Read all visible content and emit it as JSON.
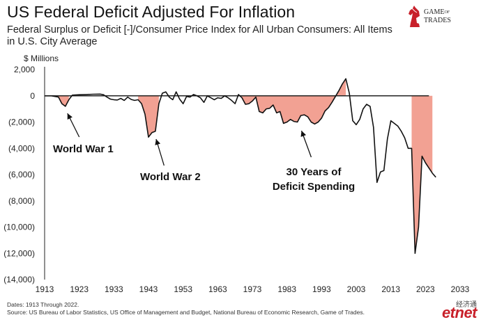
{
  "header": {
    "title": "US Federal Deficit Adjusted For Inflation",
    "subtitle": "Federal Surplus or Deficit [-]/Consumer Price Index for All Urban Consumers: All Items in U.S. City Average"
  },
  "logo": {
    "line1": "GAME",
    "line1_small": "OF",
    "line2": "TRADES"
  },
  "footnote": {
    "dates": "Dates: 1913 Through 2022.",
    "source": "Source: US Bureau of Labor Statistics, US Office of Management and Budget, National Bureau of Economic Research, Game of Trades."
  },
  "watermark": {
    "cn": "经济通",
    "en": "etnet"
  },
  "colors": {
    "fill": "#f2a193",
    "line": "#111111",
    "zero": "#222222"
  },
  "chart_data": {
    "type": "area",
    "unit_label": "$ Millions",
    "xlim": [
      1913,
      2033
    ],
    "ylim": [
      -14000,
      2000
    ],
    "xticks": [
      1913,
      1923,
      1933,
      1943,
      1953,
      1963,
      1973,
      1983,
      1993,
      2003,
      2013,
      2023,
      2033
    ],
    "yticks": [
      2000,
      0,
      -2000,
      -4000,
      -6000,
      -8000,
      -10000,
      -12000,
      -14000
    ],
    "ytick_labels": [
      "2,000",
      "0",
      "(2,000)",
      "(4,000)",
      "(6,000)",
      "(8,000)",
      "(10,000)",
      "(12,000)",
      "(14,000)"
    ],
    "grid": false,
    "series": [
      {
        "x": [
          1913,
          1915,
          1916,
          1917,
          1918,
          1919,
          1920,
          1921,
          1923,
          1925,
          1927,
          1929,
          1930,
          1931,
          1932,
          1933,
          1934,
          1935,
          1936,
          1937,
          1938,
          1939,
          1940,
          1941,
          1942,
          1943,
          1944,
          1945,
          1946,
          1947,
          1948,
          1949,
          1950,
          1951,
          1952,
          1953,
          1954,
          1955,
          1956,
          1957,
          1958,
          1959,
          1960,
          1961,
          1962,
          1963,
          1964,
          1965,
          1966,
          1967,
          1968,
          1969,
          1970,
          1971,
          1972,
          1973,
          1974,
          1975,
          1976,
          1977,
          1978,
          1979,
          1980,
          1981,
          1982,
          1983,
          1984,
          1985,
          1986,
          1987,
          1988,
          1989,
          1990,
          1991,
          1992,
          1993,
          1994,
          1995,
          1996,
          1997,
          1998,
          1999,
          2000,
          2001,
          2002,
          2003,
          2004,
          2005,
          2006,
          2007,
          2008,
          2009,
          2010,
          2011,
          2012,
          2013,
          2014,
          2015,
          2016,
          2017,
          2018,
          2019,
          2020,
          2021,
          2022,
          2023,
          2024,
          2025,
          2026
        ],
        "values": [
          0,
          0,
          -50,
          -100,
          -600,
          -800,
          -300,
          50,
          80,
          100,
          120,
          130,
          80,
          -100,
          -250,
          -300,
          -320,
          -200,
          -350,
          -100,
          -280,
          -350,
          -300,
          -600,
          -1400,
          -3150,
          -2800,
          -2700,
          -600,
          200,
          300,
          -100,
          -300,
          300,
          -250,
          -600,
          -50,
          -100,
          100,
          0,
          -150,
          -500,
          0,
          -150,
          -300,
          -150,
          -200,
          0,
          -150,
          -350,
          -600,
          100,
          -150,
          -650,
          -600,
          -400,
          -100,
          -1200,
          -1300,
          -1000,
          -950,
          -700,
          -1300,
          -1200,
          -2100,
          -2000,
          -1800,
          -1950,
          -2000,
          -1500,
          -1450,
          -1600,
          -2000,
          -2150,
          -2000,
          -1700,
          -1150,
          -900,
          -500,
          -50,
          400,
          900,
          1300,
          200,
          -1900,
          -2200,
          -1800,
          -1000,
          -650,
          -800,
          -2400,
          -6600,
          -5800,
          -5700,
          -3300,
          -1900,
          -2100,
          -2300,
          -2700,
          -3200,
          -4000,
          -4000,
          -12000,
          -10000,
          -4600,
          -5100,
          -5500,
          -5900,
          -6200
        ],
        "highlight_ranges": [
          [
            1916,
            1920
          ],
          [
            1940,
            1946
          ],
          [
            1970,
            2000
          ],
          [
            2019,
            2025
          ]
        ]
      }
    ],
    "annotations": [
      {
        "text": "World War 1",
        "target": [
          1918,
          -800
        ]
      },
      {
        "text": "World War 2",
        "target": [
          1944,
          -3200
        ]
      },
      {
        "text_lines": [
          "30 Years of",
          "Deficit Spending"
        ],
        "target": [
          1986,
          -2500
        ]
      }
    ]
  }
}
